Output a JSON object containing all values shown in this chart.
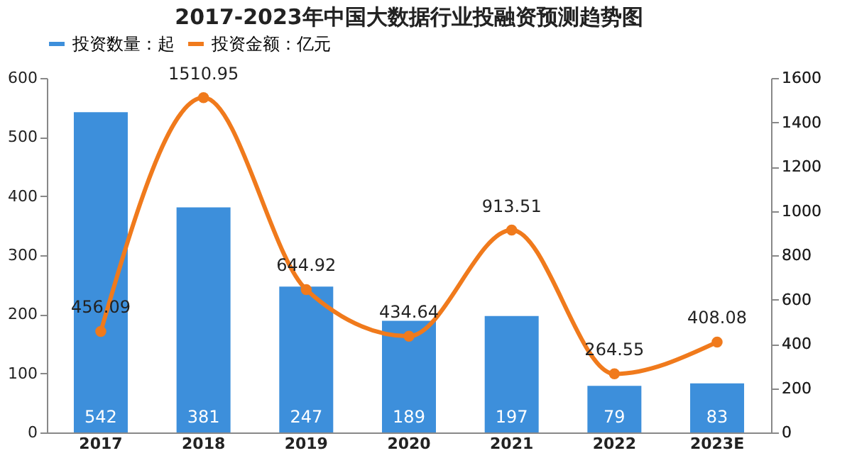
{
  "chart_data": {
    "type": "bar",
    "title": "2017-2023年中国大数据行业投融资预测趋势图",
    "categories": [
      "2017",
      "2018",
      "2019",
      "2020",
      "2021",
      "2022",
      "2023E"
    ],
    "series": [
      {
        "name": "投资数量：起",
        "color": "#3d8fdb",
        "values": [
          542,
          381,
          247,
          189,
          197,
          79,
          83
        ]
      },
      {
        "name": "投资金额：亿元",
        "type": "line",
        "axis": "y2",
        "color": "#f07a1c",
        "values": [
          456.09,
          1510.95,
          644.92,
          434.64,
          913.51,
          264.55,
          408.08
        ]
      }
    ],
    "ylim": [
      0,
      600
    ],
    "yticks": [
      0,
      100,
      200,
      300,
      400,
      500,
      600
    ],
    "y2lim": [
      0,
      1600
    ],
    "y2ticks": [
      0,
      200,
      400,
      600,
      800,
      1000,
      1200,
      1400,
      1600
    ],
    "data_labels": true,
    "legend": "top",
    "grid": false,
    "marker": "circle",
    "line_style": "solid"
  }
}
